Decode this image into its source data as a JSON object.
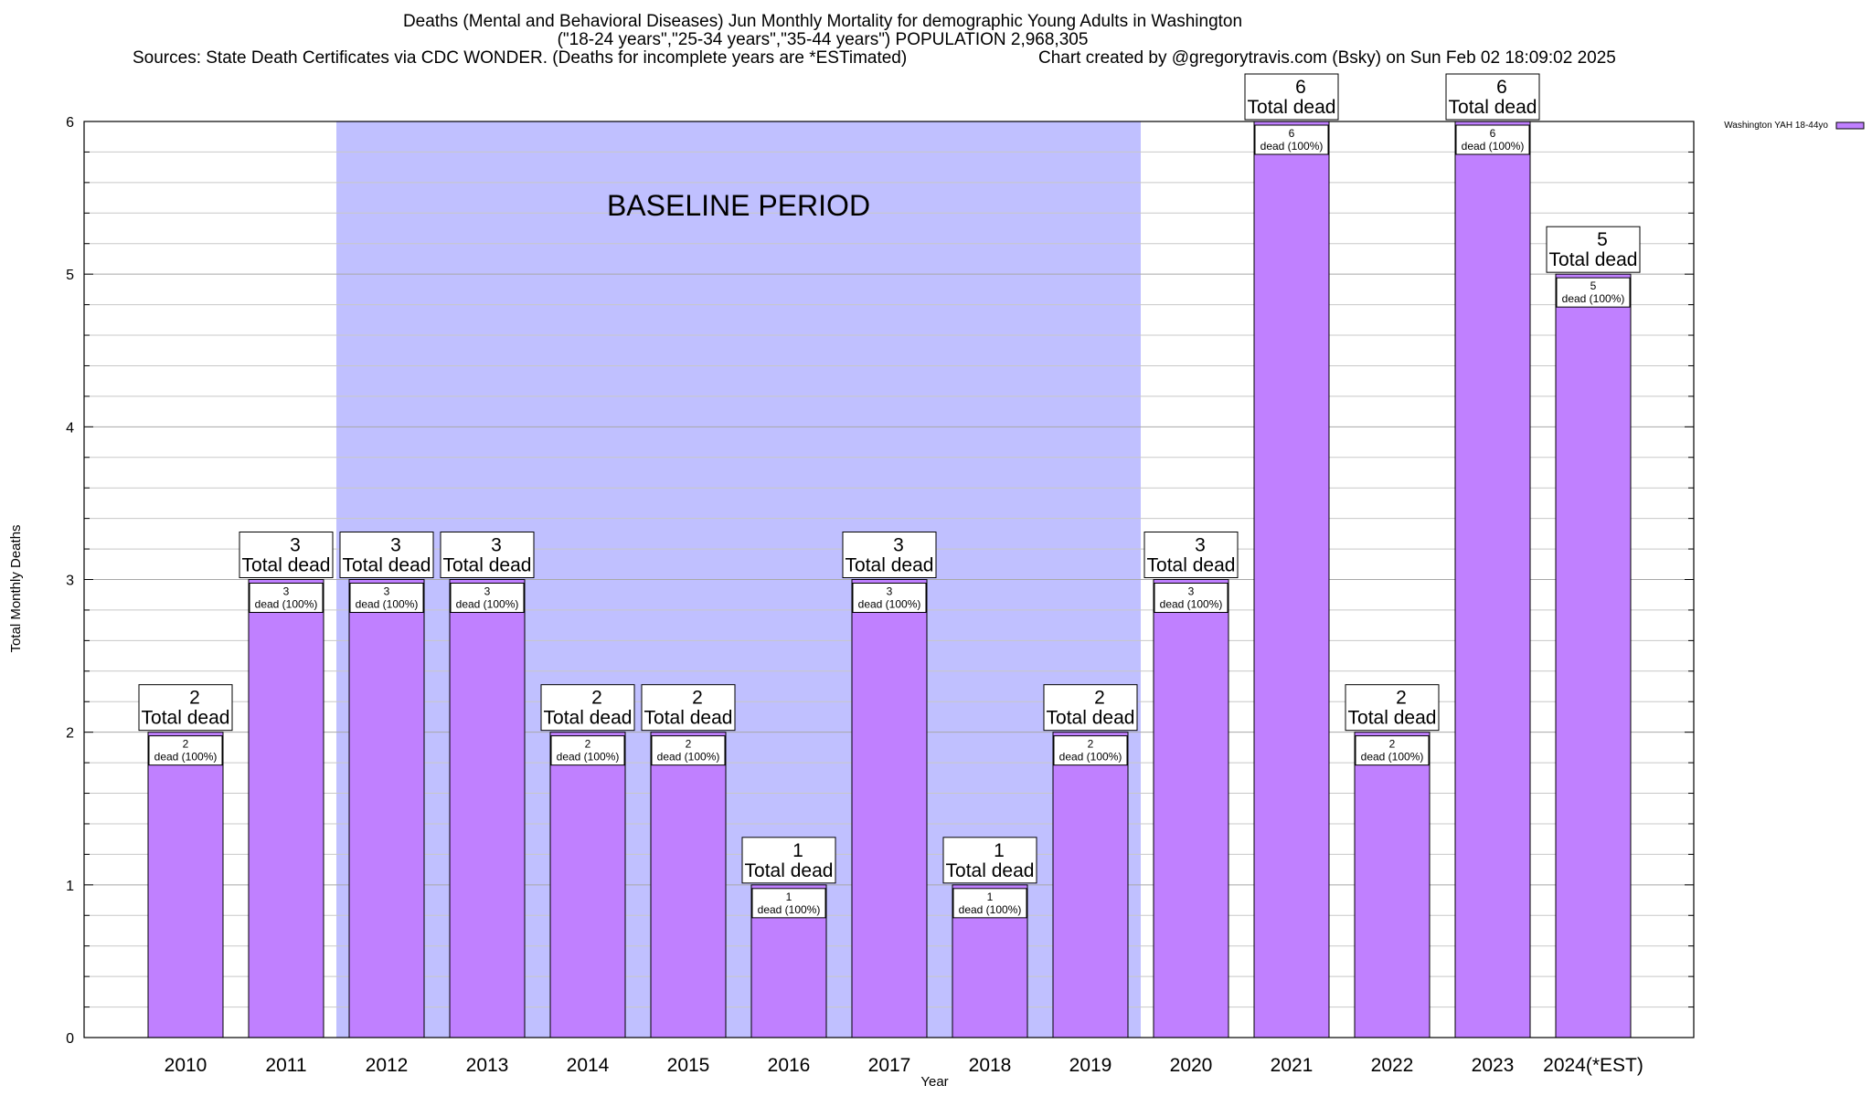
{
  "header": {
    "title_line1": "Deaths (Mental and Behavioral Diseases) Jun Monthly Mortality for demographic Young Adults in Washington",
    "title_line2": "(\"18-24 years\",\"25-34 years\",\"35-44 years\") POPULATION 2,968,305",
    "sources": "Sources: State Death Certificates via CDC WONDER. (Deaths for incomplete years are *ESTimated)",
    "credit": "Chart created by @gregorytravis.com (Bsky) on Sun Feb 02 18:09:02 2025"
  },
  "chart_data": {
    "type": "bar",
    "xlabel": "Year",
    "ylabel": "Total Monthly Deaths",
    "ylim": [
      0,
      6
    ],
    "yticks": [
      "0",
      "1",
      "2",
      "3",
      "4",
      "5",
      "6"
    ],
    "grid": true,
    "legend_position": "top-right",
    "categories": [
      "2010",
      "2011",
      "2012",
      "2013",
      "2014",
      "2015",
      "2016",
      "2017",
      "2018",
      "2019",
      "2020",
      "2021",
      "2022",
      "2023",
      "2024(*EST)"
    ],
    "series": [
      {
        "name": "Washington YAH 18-44yo",
        "color": "#c080ff",
        "values": [
          2,
          3,
          3,
          3,
          2,
          2,
          1,
          3,
          1,
          2,
          3,
          6,
          2,
          6,
          5
        ]
      }
    ],
    "total_label_text": "Total dead",
    "inner_label_text": "dead (100%)",
    "annotation": {
      "text": "BASELINE PERIOD",
      "from_category": "2012",
      "to_category": "2019",
      "color": "#c0c0ff"
    }
  }
}
